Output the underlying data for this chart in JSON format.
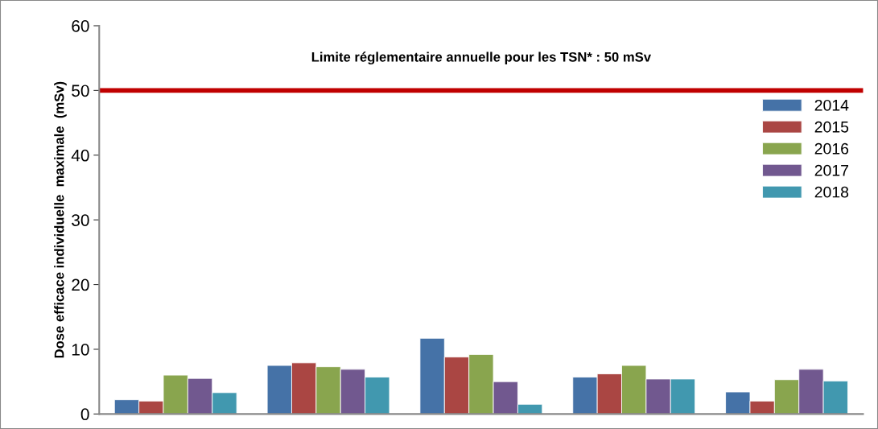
{
  "chart_data": {
    "type": "bar",
    "ylabel": "Dose efficace individuelle  maximale  (mSv)",
    "categories": [
      null,
      null,
      null,
      null,
      null
    ],
    "series": [
      {
        "name": "2014",
        "color": "#4572a7",
        "values": [
          2.2,
          7.5,
          11.7,
          5.7,
          3.4
        ]
      },
      {
        "name": "2015",
        "color": "#aa4643",
        "values": [
          2.0,
          7.9,
          8.8,
          6.2,
          2.0
        ]
      },
      {
        "name": "2016",
        "color": "#89a54e",
        "values": [
          6.0,
          7.3,
          9.2,
          7.5,
          5.3
        ]
      },
      {
        "name": "2017",
        "color": "#71588f",
        "values": [
          5.5,
          6.9,
          5.0,
          5.4,
          6.9
        ]
      },
      {
        "name": "2018",
        "color": "#4198af",
        "values": [
          3.3,
          5.7,
          1.5,
          5.4,
          5.1
        ]
      }
    ],
    "ylim": [
      0,
      60
    ],
    "yticks": [
      0,
      10,
      20,
      30,
      40,
      50,
      60
    ],
    "ref_lines": [
      {
        "axis": "y",
        "value": 50,
        "label": "Limite réglementaire annuelle pour les TSN* : 50 mSv",
        "color": "#c00000"
      }
    ],
    "legend": "right",
    "grid": false
  }
}
